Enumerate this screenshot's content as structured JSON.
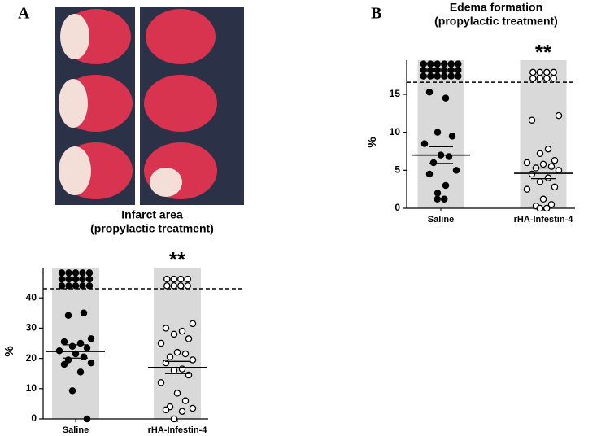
{
  "panels": [
    "A",
    "B"
  ],
  "chart_data": [
    {
      "type": "dot",
      "title_lines": [
        "Infarct area",
        "(propylactic treatment)"
      ],
      "ylabel": "%",
      "categories": [
        "Saline",
        "rHA-Infestin-4"
      ],
      "ylim": [
        0,
        50
      ],
      "yticks": [
        0,
        10,
        20,
        30,
        40
      ],
      "threshold": 43,
      "annotation": {
        "text": "**",
        "category": 1
      },
      "groups": [
        {
          "filled": true,
          "mean": 22.3,
          "sem": 2.2,
          "values": [
            48.3,
            48.3,
            48.3,
            48.3,
            48.3,
            46.2,
            46.2,
            46.2,
            46.2,
            46.2,
            44.0,
            44.0,
            44.0,
            44.0,
            44.0,
            35.0,
            34.2,
            26.5,
            25.5,
            25.0,
            24.0,
            23.5,
            22.5,
            21.5,
            20.5,
            19.5,
            18.5,
            18.0,
            15.5,
            9.3,
            0
          ]
        },
        {
          "filled": false,
          "mean": 17.0,
          "sem": 2.0,
          "values": [
            46.2,
            46.2,
            46.2,
            46.2,
            44.0,
            44.0,
            44.0,
            44.0,
            31.5,
            30.0,
            29.0,
            28.0,
            26.5,
            25.0,
            22.0,
            21.5,
            20.5,
            19.5,
            18.5,
            16.5,
            16.0,
            14.5,
            12.0,
            8.5,
            6.0,
            4.0,
            3.5,
            3.0,
            2.5,
            0
          ]
        }
      ]
    },
    {
      "type": "dot",
      "title_lines": [
        "Edema formation",
        "(propylactic treatment)"
      ],
      "ylabel": "%",
      "categories": [
        "Saline",
        "rHA-Infestin-4"
      ],
      "ylim": [
        0,
        19.5
      ],
      "yticks": [
        0,
        5,
        10,
        15
      ],
      "threshold": 16.6,
      "annotation": {
        "text": "**",
        "category": 1
      },
      "groups": [
        {
          "filled": true,
          "mean": 7.0,
          "sem": 1.1,
          "values": [
            19.0,
            19.0,
            19.0,
            19.0,
            19.0,
            19.0,
            18.2,
            18.2,
            18.2,
            18.2,
            18.2,
            18.2,
            17.4,
            17.4,
            17.4,
            17.4,
            17.4,
            17.4,
            15.3,
            14.5,
            10.0,
            9.5,
            8.5,
            7.0,
            6.8,
            6.0,
            5.0,
            4.5,
            3.0,
            2.0,
            1.2,
            1.2
          ]
        },
        {
          "filled": false,
          "mean": 4.6,
          "sem": 0.7,
          "values": [
            17.9,
            17.9,
            17.9,
            17.9,
            17.1,
            17.1,
            17.1,
            17.1,
            12.2,
            11.6,
            7.8,
            7.2,
            6.3,
            6.0,
            5.8,
            5.5,
            5.3,
            5.0,
            4.5,
            4.0,
            3.5,
            2.8,
            2.5,
            1.2,
            0.5,
            0.3,
            0,
            0
          ]
        }
      ]
    }
  ]
}
